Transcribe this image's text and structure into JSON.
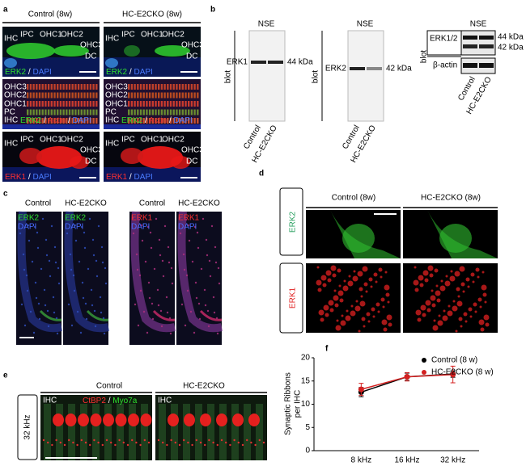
{
  "panel_a": {
    "label": "a",
    "headers": [
      "Control (8w)",
      "HC-E2CKO (8w)"
    ],
    "row1_labels": [
      "IHC",
      "IPC",
      "OHC1",
      "OHC2",
      "OHC3",
      "DC"
    ],
    "row1_stain": [
      "ERK2",
      "/",
      "DAPI"
    ],
    "row2_labels": [
      "OHC3",
      "OHC2",
      "OHC1",
      "PC",
      "IHC"
    ],
    "row2_stain": [
      "ERK2",
      "/",
      "Actin",
      "/",
      "DAPI"
    ],
    "row3_labels": [
      "IHC",
      "IPC",
      "OHC1",
      "OHC2",
      "OHC3",
      "DC"
    ],
    "row3_stain": [
      "ERK1",
      "/",
      "DAPI"
    ]
  },
  "panel_b": {
    "label": "b",
    "blots": [
      {
        "title": "NSE",
        "side": "blot",
        "bands": [
          "ERK1"
        ],
        "sizes": [
          "44 kDa"
        ],
        "lanes": [
          "Control",
          "HC-E2CKO"
        ]
      },
      {
        "title": "NSE",
        "side": "blot",
        "bands": [
          "ERK2"
        ],
        "sizes": [
          "42 kDa"
        ],
        "lanes": [
          "Control",
          "HC-E2CKO"
        ]
      },
      {
        "title": "NSE",
        "side": "blot",
        "bands": [
          "ERK1/2",
          "β-actin"
        ],
        "sizes": [
          "44 kDa",
          "42 kDa"
        ],
        "lanes": [
          "Control",
          "HC-E2CKO"
        ]
      }
    ]
  },
  "panel_c": {
    "label": "c",
    "headers": [
      "Control",
      "HC-E2CKO",
      "Control",
      "HC-E2CKO"
    ],
    "stains": [
      [
        "ERK2",
        "DAPI"
      ],
      [
        "ERK2",
        "DAPI"
      ],
      [
        "ERK1",
        "DAPI"
      ],
      [
        "ERK1",
        "DAPI"
      ]
    ]
  },
  "panel_d": {
    "label": "d",
    "headers": [
      "Control (8w)",
      "HC-E2CKO (8w)"
    ],
    "rows": [
      "ERK2",
      "ERK1"
    ]
  },
  "panel_e": {
    "label": "e",
    "headers": [
      "Control",
      "HC-E2CKO"
    ],
    "row": "32 kHz",
    "cell_label": "IHC",
    "stain": [
      "CtBP2",
      "/",
      "Myo7a"
    ]
  },
  "chart_data": {
    "type": "line",
    "panel": "f",
    "ylabel": [
      "Synaptic Ribbons",
      "per IHC"
    ],
    "categories": [
      "8 kHz",
      "16 kHz",
      "32 kHz"
    ],
    "series": [
      {
        "name": "Control  (8 w)",
        "color": "#000000",
        "values": [
          12.6,
          15.9,
          16.5
        ],
        "errors": [
          1.0,
          0.8,
          0.7
        ]
      },
      {
        "name": "HC-E2CKO (8 w)",
        "color": "#d42020",
        "values": [
          13.2,
          15.9,
          16.4
        ],
        "errors": [
          1.3,
          0.9,
          1.8
        ]
      }
    ],
    "ylim": [
      0,
      20
    ],
    "yticks": [
      0,
      5,
      10,
      15,
      20
    ],
    "legend": "upper right"
  }
}
